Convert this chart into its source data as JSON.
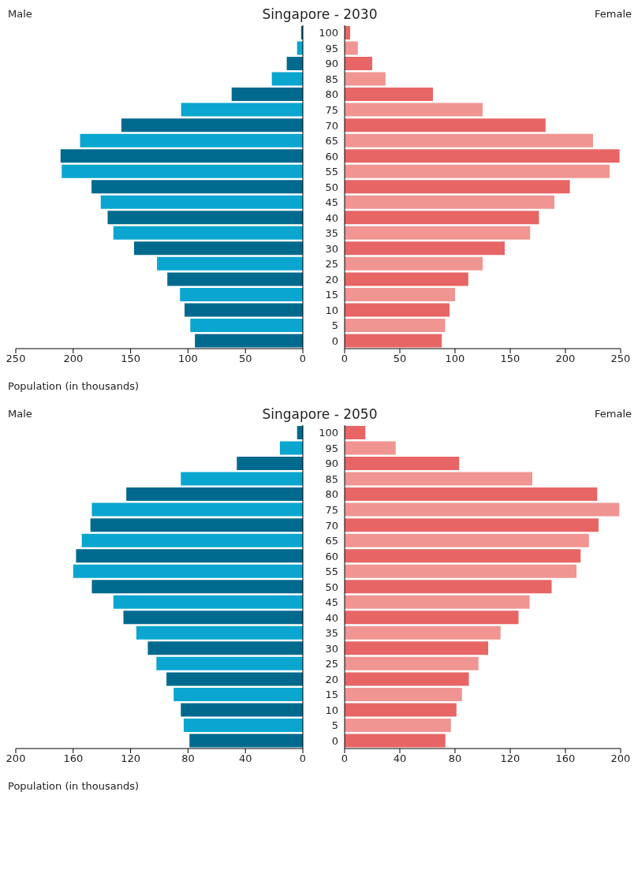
{
  "chart_data": [
    {
      "type": "bar",
      "orientation": "horizontal",
      "title": "Singapore - 2030",
      "subtitle": "Male",
      "xlabel": "Population (in thousands)",
      "tick_labels": "x",
      "categories": [
        "100",
        "95",
        "90",
        "85",
        "80",
        "75",
        "70",
        "65",
        "60",
        "55",
        "50",
        "45",
        "40",
        "35",
        "30",
        "25",
        "20",
        "15",
        "10",
        "5",
        "0"
      ],
      "values": [
        1.5,
        5,
        14,
        27,
        62,
        106,
        158,
        194,
        211,
        210,
        184,
        176,
        170,
        165,
        147,
        127,
        118,
        107,
        103,
        98,
        94
      ],
      "colors": [
        "#006a8e",
        "#0aa6cf",
        "#006a8e",
        "#0aa6cf",
        "#006a8e",
        "#0aa6cf",
        "#006a8e",
        "#0aa6cf",
        "#006a8e",
        "#0aa6cf",
        "#006a8e",
        "#0aa6cf",
        "#006a8e",
        "#0aa6cf",
        "#006a8e",
        "#0aa6cf",
        "#006a8e",
        "#0aa6cf",
        "#006a8e",
        "#0aa6cf",
        "#006a8e"
      ],
      "xlim": [
        250,
        0
      ],
      "xticks": [
        250,
        200,
        150,
        100,
        50,
        0
      ]
    },
    {
      "type": "bar",
      "orientation": "horizontal",
      "subtitle": "Female",
      "categories": [
        "100",
        "95",
        "90",
        "85",
        "80",
        "75",
        "70",
        "65",
        "60",
        "55",
        "50",
        "45",
        "40",
        "35",
        "30",
        "25",
        "20",
        "15",
        "10",
        "5",
        "0"
      ],
      "values": [
        5,
        12,
        25,
        37,
        80,
        125,
        182,
        225,
        249,
        240,
        204,
        190,
        176,
        168,
        145,
        125,
        112,
        100,
        95,
        91,
        88
      ],
      "colors": [
        "#e86565",
        "#f09592",
        "#e86565",
        "#f09592",
        "#e86565",
        "#f09592",
        "#e86565",
        "#f09592",
        "#e86565",
        "#f09592",
        "#e86565",
        "#f09592",
        "#e86565",
        "#f09592",
        "#e86565",
        "#f09592",
        "#e86565",
        "#f09592",
        "#e86565",
        "#f09592",
        "#e86565"
      ],
      "xlim": [
        0,
        250
      ],
      "xticks": [
        0,
        50,
        100,
        150,
        200,
        250
      ]
    },
    {
      "type": "bar",
      "orientation": "horizontal",
      "title": "Singapore - 2050",
      "subtitle": "Male",
      "xlabel": "Population (in thousands)",
      "tick_labels": "x",
      "categories": [
        "100",
        "95",
        "90",
        "85",
        "80",
        "75",
        "70",
        "65",
        "60",
        "55",
        "50",
        "45",
        "40",
        "35",
        "30",
        "25",
        "20",
        "15",
        "10",
        "5",
        "0"
      ],
      "values": [
        4,
        16,
        46,
        85,
        123,
        147,
        148,
        154,
        158,
        160,
        147,
        132,
        125,
        116,
        108,
        102,
        95,
        90,
        85,
        83,
        79
      ],
      "colors": [
        "#006a8e",
        "#0aa6cf",
        "#006a8e",
        "#0aa6cf",
        "#006a8e",
        "#0aa6cf",
        "#006a8e",
        "#0aa6cf",
        "#006a8e",
        "#0aa6cf",
        "#006a8e",
        "#0aa6cf",
        "#006a8e",
        "#0aa6cf",
        "#006a8e",
        "#0aa6cf",
        "#006a8e",
        "#0aa6cf",
        "#006a8e",
        "#0aa6cf",
        "#006a8e"
      ],
      "xlim": [
        200,
        0
      ],
      "xticks": [
        200,
        160,
        120,
        80,
        40,
        0
      ]
    },
    {
      "type": "bar",
      "orientation": "horizontal",
      "subtitle": "Female",
      "categories": [
        "100",
        "95",
        "90",
        "85",
        "80",
        "75",
        "70",
        "65",
        "60",
        "55",
        "50",
        "45",
        "40",
        "35",
        "30",
        "25",
        "20",
        "15",
        "10",
        "5",
        "0"
      ],
      "values": [
        15,
        37,
        83,
        136,
        183,
        199,
        184,
        177,
        171,
        168,
        150,
        134,
        126,
        113,
        104,
        97,
        90,
        85,
        81,
        77,
        73
      ],
      "colors": [
        "#e86565",
        "#f09592",
        "#e86565",
        "#f09592",
        "#e86565",
        "#f09592",
        "#e86565",
        "#f09592",
        "#e86565",
        "#f09592",
        "#e86565",
        "#f09592",
        "#e86565",
        "#f09592",
        "#e86565",
        "#f09592",
        "#e86565",
        "#f09592",
        "#e86565",
        "#f09592",
        "#e86565"
      ],
      "xlim": [
        0,
        200
      ],
      "xticks": [
        0,
        40,
        80,
        120,
        160,
        200
      ]
    }
  ]
}
